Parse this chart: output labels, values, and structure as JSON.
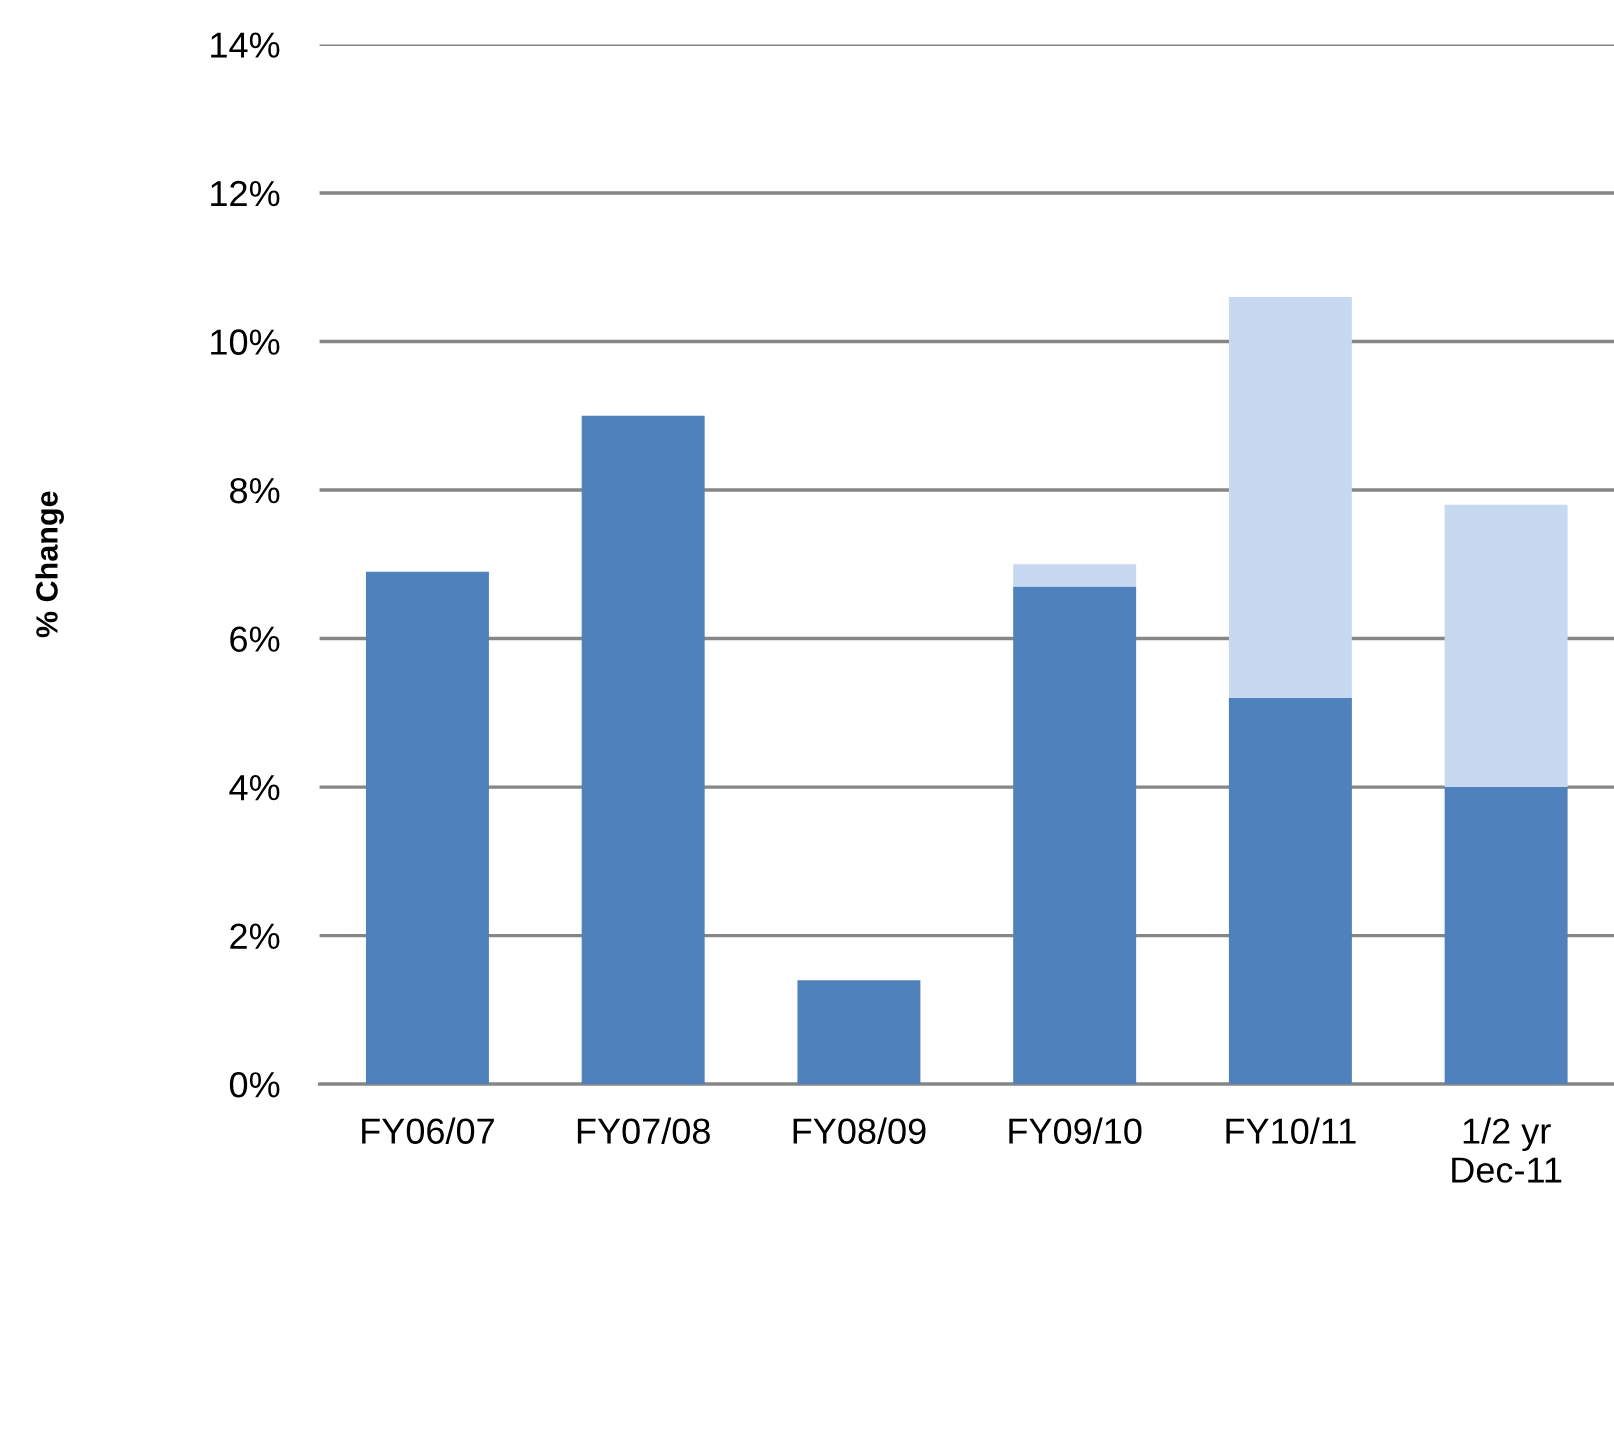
{
  "chart_data": {
    "type": "bar",
    "stacked": true,
    "ylabel": "% Change",
    "categories": [
      "FY06/07",
      "FY07/08",
      "FY08/09",
      "FY09/10",
      "FY10/11",
      "1/2 yr\nDec-11"
    ],
    "series": [
      {
        "color": "#4f81bd",
        "values": [
          6.9,
          9.0,
          1.4,
          6.7,
          5.2,
          4.0
        ]
      },
      {
        "color": "#c6d9f1",
        "values": [
          null,
          null,
          null,
          0.3,
          5.4,
          3.8
        ]
      }
    ],
    "ylim": [
      0,
      14
    ],
    "yticks": [
      {
        "value": 0,
        "label": "0%"
      },
      {
        "value": 2,
        "label": "2%"
      },
      {
        "value": 4,
        "label": "4%"
      },
      {
        "value": 6,
        "label": "6%"
      },
      {
        "value": 8,
        "label": "8%"
      },
      {
        "value": 10,
        "label": "10%"
      },
      {
        "value": 12,
        "label": "12%"
      },
      {
        "value": 14,
        "label": "14%"
      }
    ],
    "grid": "y"
  }
}
